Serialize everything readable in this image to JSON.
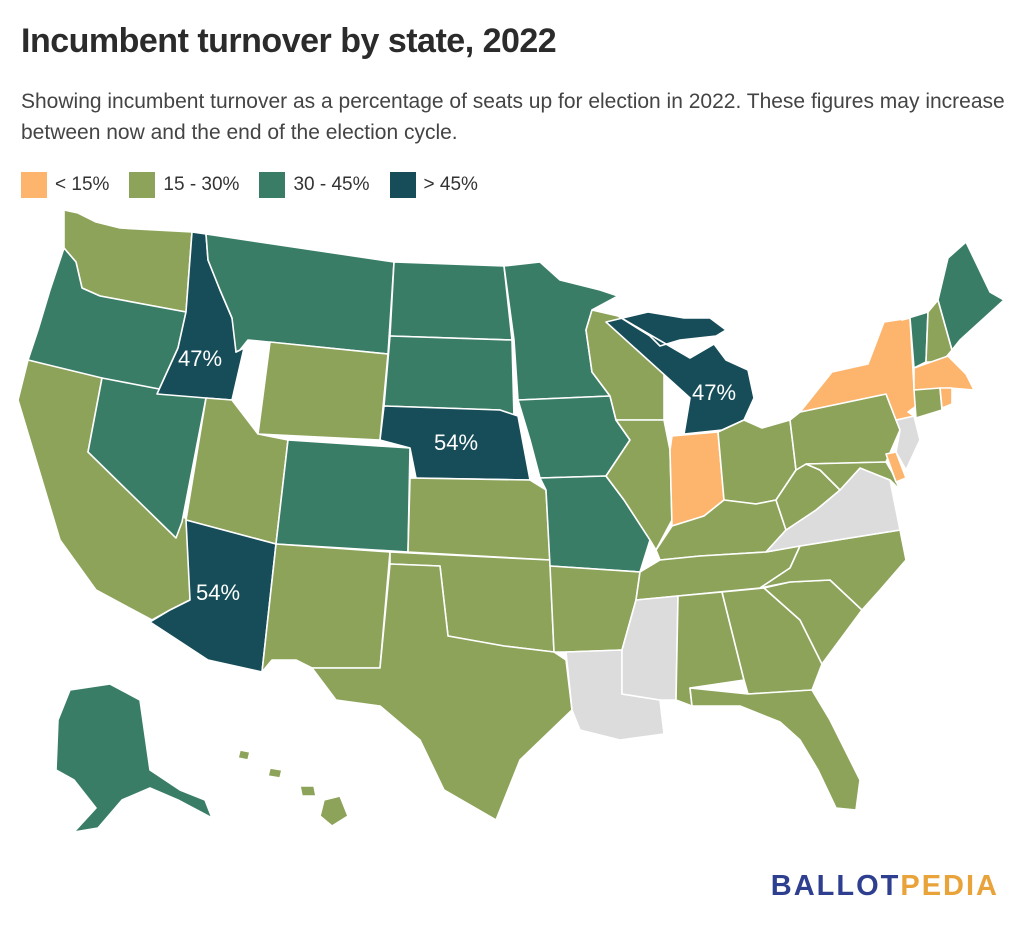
{
  "title": "Incumbent turnover by state, 2022",
  "subtitle": "Showing incumbent turnover as a percentage of seats up for election in 2022. These figures may increase between now and the end of the election cycle.",
  "legend": [
    {
      "label": "< 15%",
      "color": "#fdb46c"
    },
    {
      "label": "15 - 30%",
      "color": "#8da35a"
    },
    {
      "label": "30 - 45%",
      "color": "#3a7d67"
    },
    {
      "label": "> 45%",
      "color": "#164d59"
    }
  ],
  "no_data_color": "#dcdcdc",
  "states": {
    "WA": "15-30",
    "OR": "30-45",
    "CA": "15-30",
    "ID": ">45",
    "NV": "30-45",
    "AZ": ">45",
    "MT": "30-45",
    "WY": "15-30",
    "UT": "15-30",
    "CO": "30-45",
    "NM": "15-30",
    "ND": "30-45",
    "SD": "30-45",
    "NE": ">45",
    "KS": "15-30",
    "OK": "15-30",
    "TX": "15-30",
    "MN": "30-45",
    "IA": "30-45",
    "MO": "30-45",
    "AR": "15-30",
    "LA": "none",
    "WI": "15-30",
    "IL": "15-30",
    "MI": ">45",
    "IN": "<15",
    "OH": "15-30",
    "KY": "15-30",
    "TN": "15-30",
    "MS": "none",
    "AL": "15-30",
    "GA": "15-30",
    "FL": "15-30",
    "SC": "15-30",
    "NC": "15-30",
    "VA": "none",
    "WV": "15-30",
    "PA": "15-30",
    "NY": "<15",
    "VT": "30-45",
    "NH": "15-30",
    "ME": "30-45",
    "MA": "<15",
    "CT": "15-30",
    "RI": "<15",
    "NJ": "none",
    "DE": "<15",
    "MD": "15-30",
    "AK": "30-45",
    "HI": "15-30"
  },
  "labels": {
    "ID": "47%",
    "MI": "47%",
    "NE": "54%",
    "AZ": "54%"
  },
  "logo": {
    "part1": "BALLOT",
    "part2": "PEDIA"
  }
}
